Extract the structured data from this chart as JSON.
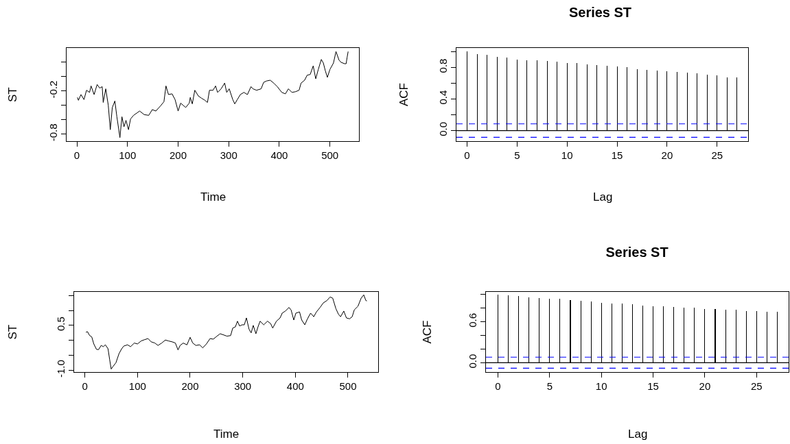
{
  "chart_data": [
    {
      "type": "line",
      "xlabel": "Time",
      "ylabel": "ST",
      "color": "#000000",
      "xlim": [
        -20.4,
        557.4
      ],
      "ylim": [
        -0.9,
        0.4
      ],
      "xticks": [
        0,
        100,
        200,
        300,
        400,
        500
      ],
      "yticks": [
        {
          "value": 0.2,
          "label": null
        },
        {
          "value": 0,
          "label": null
        },
        -0.2,
        {
          "value": -0.4,
          "label": null
        },
        {
          "value": -0.6,
          "label": null
        },
        -0.8
      ],
      "x": [
        1,
        3,
        8,
        14,
        19,
        25,
        28,
        34,
        40,
        45,
        50,
        52,
        57,
        62,
        66,
        70,
        75,
        79,
        85,
        89,
        93,
        97,
        102,
        106,
        112,
        118,
        124,
        133,
        142,
        149,
        156,
        165,
        172,
        176,
        181,
        188,
        194,
        200,
        205,
        210,
        215,
        222,
        224,
        228,
        233,
        240,
        246,
        253,
        258,
        262,
        269,
        274,
        278,
        285,
        292,
        296,
        301,
        308,
        312,
        317,
        323,
        330,
        337,
        344,
        348,
        355,
        364,
        369,
        375,
        382,
        389,
        396,
        405,
        412,
        418,
        425,
        432,
        439,
        443,
        450,
        455,
        461,
        467,
        472,
        477,
        483,
        487,
        491,
        495,
        500,
        507,
        512,
        518,
        522,
        529,
        532,
        534,
        536
      ],
      "values": [
        -0.29,
        -0.33,
        -0.25,
        -0.32,
        -0.19,
        -0.22,
        -0.13,
        -0.25,
        -0.11,
        -0.16,
        -0.14,
        -0.36,
        -0.17,
        -0.4,
        -0.74,
        -0.43,
        -0.34,
        -0.56,
        -0.85,
        -0.56,
        -0.7,
        -0.61,
        -0.74,
        -0.59,
        -0.54,
        -0.51,
        -0.48,
        -0.53,
        -0.54,
        -0.46,
        -0.48,
        -0.41,
        -0.35,
        -0.13,
        -0.25,
        -0.24,
        -0.32,
        -0.48,
        -0.37,
        -0.4,
        -0.43,
        -0.37,
        -0.29,
        -0.38,
        -0.19,
        -0.27,
        -0.3,
        -0.33,
        -0.36,
        -0.19,
        -0.19,
        -0.13,
        -0.22,
        -0.17,
        -0.09,
        -0.22,
        -0.17,
        -0.32,
        -0.38,
        -0.32,
        -0.25,
        -0.22,
        -0.25,
        -0.14,
        -0.17,
        -0.19,
        -0.17,
        -0.08,
        -0.06,
        -0.05,
        -0.09,
        -0.14,
        -0.22,
        -0.24,
        -0.17,
        -0.22,
        -0.21,
        -0.19,
        -0.09,
        -0.05,
        0.02,
        0.03,
        0.15,
        -0.03,
        0.1,
        0.24,
        0.19,
        0.08,
        -0.01,
        0.1,
        0.19,
        0.35,
        0.23,
        0.2,
        0.18,
        0.18,
        0.27,
        0.35
      ]
    },
    {
      "type": "bar",
      "title": "Series ST",
      "xlabel": "Lag",
      "ylabel": "ACF",
      "color": "#000000",
      "xlim": [
        -1.06,
        28.1
      ],
      "ylim": [
        -0.134,
        1.045
      ],
      "xticks": [
        0,
        5,
        10,
        15,
        20,
        25
      ],
      "yticks": [
        {
          "value": 1,
          "label": null
        },
        0.8,
        {
          "value": 0.6,
          "label": null
        },
        0.4,
        {
          "value": 0.2,
          "label": null
        },
        {
          "value": 0,
          "label": "0.0"
        }
      ],
      "x": [
        0,
        1,
        2,
        3,
        4,
        5,
        6,
        7,
        8,
        9,
        10,
        11,
        12,
        13,
        14,
        15,
        16,
        17,
        18,
        19,
        20,
        21,
        22,
        23,
        24,
        25,
        26,
        27
      ],
      "values": [
        1.0,
        0.97,
        0.96,
        0.93,
        0.92,
        0.9,
        0.89,
        0.89,
        0.88,
        0.87,
        0.85,
        0.85,
        0.84,
        0.83,
        0.82,
        0.81,
        0.8,
        0.78,
        0.77,
        0.76,
        0.75,
        0.74,
        0.73,
        0.72,
        0.71,
        0.7,
        0.67,
        0.67
      ],
      "ref_lines": [
        {
          "axis": "y",
          "value": 0,
          "color": "#000000",
          "line_style": "solid"
        },
        {
          "axis": "y",
          "value": 0.085,
          "color": "#0000ff",
          "line_style": "dashed"
        },
        {
          "axis": "y",
          "value": -0.085,
          "color": "#0000ff",
          "line_style": "dashed"
        }
      ]
    },
    {
      "type": "line",
      "xlabel": "Time",
      "ylabel": "ST",
      "color": "#000000",
      "xlim": [
        -20.4,
        557.4
      ],
      "ylim": [
        -1.06,
        1.62
      ],
      "xticks": [
        0,
        100,
        200,
        300,
        400,
        500
      ],
      "yticks": [
        {
          "value": 1.5,
          "label": null
        },
        {
          "value": 1,
          "label": null
        },
        0.5,
        {
          "value": 0,
          "label": null
        },
        {
          "value": -0.5,
          "label": null
        },
        {
          "value": -1,
          "label": "-1.0"
        }
      ],
      "x": [
        2,
        5,
        9,
        13,
        17,
        22,
        26,
        31,
        35,
        39,
        44,
        47,
        50,
        54,
        59,
        65,
        70,
        74,
        81,
        87,
        94,
        100,
        107,
        113,
        120,
        126,
        133,
        139,
        146,
        153,
        159,
        166,
        172,
        177,
        181,
        187,
        194,
        200,
        205,
        211,
        218,
        224,
        231,
        238,
        244,
        251,
        257,
        264,
        270,
        277,
        281,
        286,
        290,
        294,
        299,
        303,
        307,
        312,
        316,
        320,
        325,
        329,
        333,
        340,
        347,
        353,
        357,
        364,
        371,
        375,
        381,
        388,
        392,
        397,
        401,
        408,
        412,
        418,
        423,
        429,
        435,
        440,
        447,
        453,
        460,
        466,
        471,
        477,
        482,
        486,
        492,
        497,
        503,
        508,
        512,
        519,
        525,
        530,
        534,
        536
      ],
      "values": [
        0.27,
        0.29,
        0.16,
        0.12,
        -0.12,
        -0.3,
        -0.31,
        -0.17,
        -0.21,
        -0.15,
        -0.28,
        -0.63,
        -0.96,
        -0.86,
        -0.75,
        -0.44,
        -0.28,
        -0.19,
        -0.15,
        -0.21,
        -0.09,
        -0.12,
        -0.02,
        0.02,
        0.06,
        -0.05,
        -0.09,
        -0.17,
        -0.09,
        0.01,
        -0.02,
        -0.05,
        -0.09,
        -0.32,
        -0.17,
        -0.09,
        -0.15,
        0.1,
        -0.09,
        -0.17,
        -0.15,
        -0.25,
        -0.12,
        0.06,
        0.04,
        0.14,
        0.22,
        0.18,
        0.14,
        0.16,
        0.41,
        0.45,
        0.64,
        0.48,
        0.52,
        0.52,
        0.75,
        0.37,
        0.25,
        0.5,
        0.22,
        0.45,
        0.64,
        0.52,
        0.64,
        0.56,
        0.41,
        0.64,
        0.75,
        0.91,
        0.98,
        1.1,
        1.01,
        0.68,
        0.91,
        0.95,
        0.68,
        0.52,
        0.72,
        0.91,
        0.79,
        0.95,
        1.1,
        1.25,
        1.33,
        1.45,
        1.41,
        1.06,
        0.87,
        0.79,
        0.98,
        0.75,
        0.72,
        0.79,
        1.02,
        1.14,
        1.41,
        1.52,
        1.33,
        1.32
      ]
    },
    {
      "type": "bar",
      "title": "Series ST",
      "xlabel": "Lag",
      "ylabel": "ACF",
      "color": "#000000",
      "xlim": [
        -1.16,
        28.1
      ],
      "ylim": [
        -0.138,
        1.039
      ],
      "xticks": [
        0,
        5,
        10,
        15,
        20,
        25
      ],
      "yticks": [
        {
          "value": 1,
          "label": null
        },
        {
          "value": 0.8,
          "label": null
        },
        0.6,
        {
          "value": 0.4,
          "label": null
        },
        {
          "value": 0.2,
          "label": null
        },
        {
          "value": 0,
          "label": "0.0"
        }
      ],
      "x": [
        0,
        1,
        2,
        3,
        4,
        5,
        6,
        7,
        8,
        9,
        10,
        11,
        12,
        13,
        14,
        15,
        16,
        17,
        18,
        19,
        20,
        21,
        22,
        23,
        24,
        25,
        26,
        27
      ],
      "values": [
        1.0,
        0.99,
        0.98,
        0.96,
        0.95,
        0.94,
        0.94,
        0.92,
        0.91,
        0.9,
        0.88,
        0.87,
        0.87,
        0.86,
        0.84,
        0.83,
        0.83,
        0.82,
        0.81,
        0.81,
        0.79,
        0.79,
        0.78,
        0.78,
        0.76,
        0.76,
        0.75,
        0.75
      ],
      "ref_lines": [
        {
          "axis": "y",
          "value": 0,
          "color": "#000000",
          "line_style": "solid"
        },
        {
          "axis": "y",
          "value": 0.081,
          "color": "#0000ff",
          "line_style": "dashed"
        },
        {
          "axis": "y",
          "value": -0.081,
          "color": "#0000ff",
          "line_style": "dashed"
        }
      ]
    }
  ]
}
